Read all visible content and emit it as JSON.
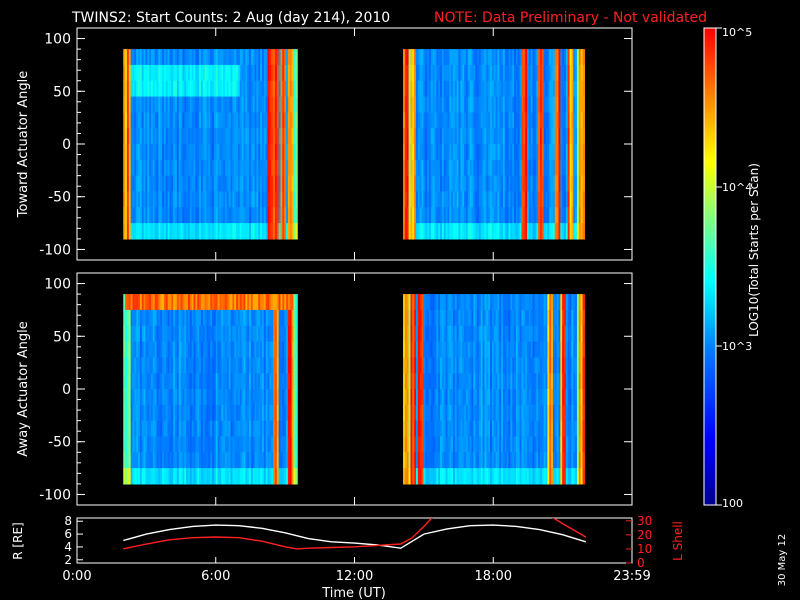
{
  "figure": {
    "title": "TWINS2: Start Counts:  2 Aug (day 214), 2010",
    "note": "NOTE: Data Preliminary - Not validated",
    "footer_date": "30 May 12",
    "colors": {
      "background": "#000000",
      "axes": "#ffffff",
      "note": "#ff2020"
    }
  },
  "chart_data": [
    {
      "type": "heatmap",
      "name": "toward-panel",
      "ylabel": "Toward Actuator Angle",
      "xlabel": "",
      "xlim": [
        0,
        24
      ],
      "ylim": [
        -110,
        110
      ],
      "yticks": [
        "100",
        "50",
        "0",
        "-50",
        "-100"
      ],
      "ytick_values": [
        100,
        50,
        0,
        -50,
        -100
      ],
      "data_x_ranges_hours": [
        [
          2.0,
          9.5
        ],
        [
          14.1,
          21.9
        ]
      ],
      "data_y_range": [
        -90,
        90
      ],
      "hot_columns_hours": [
        2.1,
        2.2,
        8.3,
        8.6,
        8.9,
        9.2,
        14.2,
        14.5,
        19.3,
        20.0,
        20.7,
        21.3,
        21.8
      ],
      "enhanced_band_deg": 60
    },
    {
      "type": "heatmap",
      "name": "away-panel",
      "ylabel": "Away Actuator Angle",
      "xlabel": "",
      "xlim": [
        0,
        24
      ],
      "ylim": [
        -110,
        110
      ],
      "yticks": [
        "100",
        "50",
        "0",
        "-50",
        "-100"
      ],
      "ytick_values": [
        100,
        50,
        0,
        -50,
        -100
      ],
      "data_x_ranges_hours": [
        [
          2.0,
          9.5
        ],
        [
          14.1,
          21.9
        ]
      ],
      "data_y_range": [
        -90,
        90
      ],
      "hot_columns_hours": [
        8.6,
        9.2,
        14.2,
        14.5,
        14.8,
        20.4,
        21.0,
        21.8
      ],
      "hot_band_deg": 78
    },
    {
      "type": "line",
      "name": "orbit-panel",
      "ylabel_left": "R [RE]",
      "ylabel_right": "L Shell",
      "xlabel": "Time (UT)",
      "xticks": [
        "0:00",
        "6:00",
        "12:00",
        "18:00",
        "23:59"
      ],
      "xtick_values": [
        0,
        6,
        12,
        18,
        24
      ],
      "yticks_left": [
        "8",
        "6",
        "4",
        "2"
      ],
      "ytick_values_left": [
        8,
        6,
        4,
        2
      ],
      "ylim_left": [
        1.5,
        8.5
      ],
      "yticks_right": [
        "30",
        "20",
        "10",
        "0"
      ],
      "ytick_values_right": [
        30,
        20,
        10,
        0
      ],
      "ylim_right": [
        0,
        32
      ],
      "series": [
        {
          "name": "R [RE]",
          "color": "#ffffff",
          "x": [
            2.0,
            3.0,
            4.0,
            5.0,
            6.0,
            7.0,
            8.0,
            9.0,
            10.0,
            11.0,
            12.0,
            13.0,
            14.0,
            15.0,
            16.0,
            17.0,
            18.0,
            19.0,
            20.0,
            21.0,
            22.0
          ],
          "y": [
            5.0,
            6.0,
            6.7,
            7.2,
            7.4,
            7.3,
            6.9,
            6.2,
            5.3,
            4.8,
            4.6,
            4.3,
            3.8,
            6.0,
            6.8,
            7.3,
            7.4,
            7.2,
            6.7,
            5.9,
            4.8
          ]
        },
        {
          "name": "L Shell",
          "axis": "right",
          "color": "#ff2020",
          "x": [
            2.0,
            3.0,
            4.0,
            5.0,
            6.0,
            7.0,
            8.0,
            9.0,
            9.5,
            10.0,
            11.0,
            12.0,
            13.0,
            14.0,
            14.5,
            15.0,
            15.4,
            20.5,
            21.0,
            22.0
          ],
          "y": [
            10.0,
            13.5,
            16.5,
            18.0,
            18.5,
            18.0,
            15.5,
            11.5,
            10.0,
            10.5,
            11.0,
            11.5,
            12.5,
            13.5,
            18.0,
            26.0,
            33.0,
            33.0,
            28.0,
            18.5
          ]
        }
      ]
    }
  ],
  "colorbar": {
    "label": "LOG10(Total Starts per Scan)",
    "scale": "log",
    "range": [
      100,
      100000
    ],
    "ticks": [
      "10^5",
      "10^4",
      "10^3",
      "100"
    ],
    "tick_values": [
      100000,
      10000,
      1000,
      100
    ],
    "colormap": [
      "#00008f",
      "#0000ff",
      "#0080ff",
      "#00ffff",
      "#80ff80",
      "#ffff00",
      "#ff8000",
      "#ff0000"
    ]
  }
}
